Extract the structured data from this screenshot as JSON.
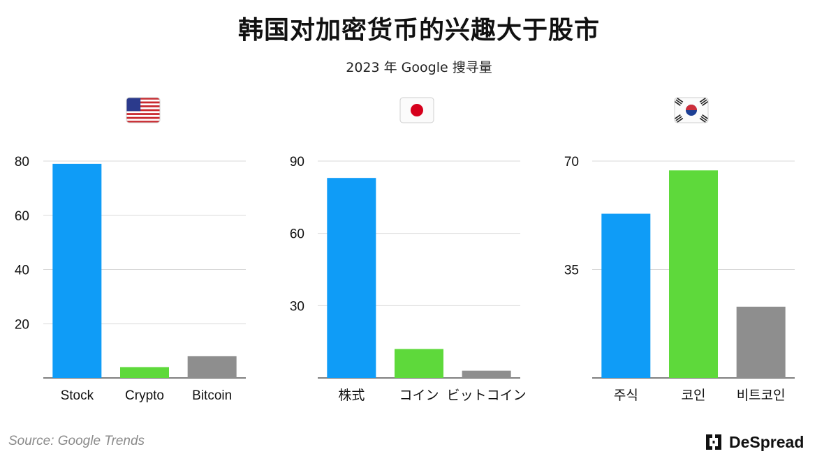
{
  "header": {
    "title": "韩国对加密货币的兴趣大于股市",
    "subtitle": "2023 年 Google 搜寻量"
  },
  "footer": {
    "source": "Source: Google Trends",
    "brand": "DeSpread"
  },
  "colors": {
    "stock": "#0f9cf7",
    "coin": "#5ed93b",
    "bitcoin": "#8e8e8e",
    "grid": "#d9d9d9",
    "axis": "#555555"
  },
  "chart_data": [
    {
      "type": "bar",
      "flag": "us-flag",
      "categories": [
        "Stock",
        "Crypto",
        "Bitcoin"
      ],
      "values": [
        79,
        4,
        8
      ],
      "yticks": [
        20,
        40,
        60,
        80
      ],
      "ylim": [
        0,
        80
      ],
      "colors": [
        "#0f9cf7",
        "#5ed93b",
        "#8e8e8e"
      ],
      "grid": true
    },
    {
      "type": "bar",
      "flag": "japan-flag",
      "categories": [
        "株式",
        "コイン",
        "ビットコイン"
      ],
      "values": [
        83,
        12,
        3
      ],
      "yticks": [
        30,
        60,
        90
      ],
      "ylim": [
        0,
        90
      ],
      "colors": [
        "#0f9cf7",
        "#5ed93b",
        "#8e8e8e"
      ],
      "grid": true
    },
    {
      "type": "bar",
      "flag": "korea-flag",
      "categories": [
        "주식",
        "코인",
        "비트코인"
      ],
      "values": [
        53,
        67,
        23
      ],
      "yticks": [
        35,
        70
      ],
      "ylim": [
        0,
        70
      ],
      "colors": [
        "#0f9cf7",
        "#5ed93b",
        "#8e8e8e"
      ],
      "grid": true
    }
  ]
}
